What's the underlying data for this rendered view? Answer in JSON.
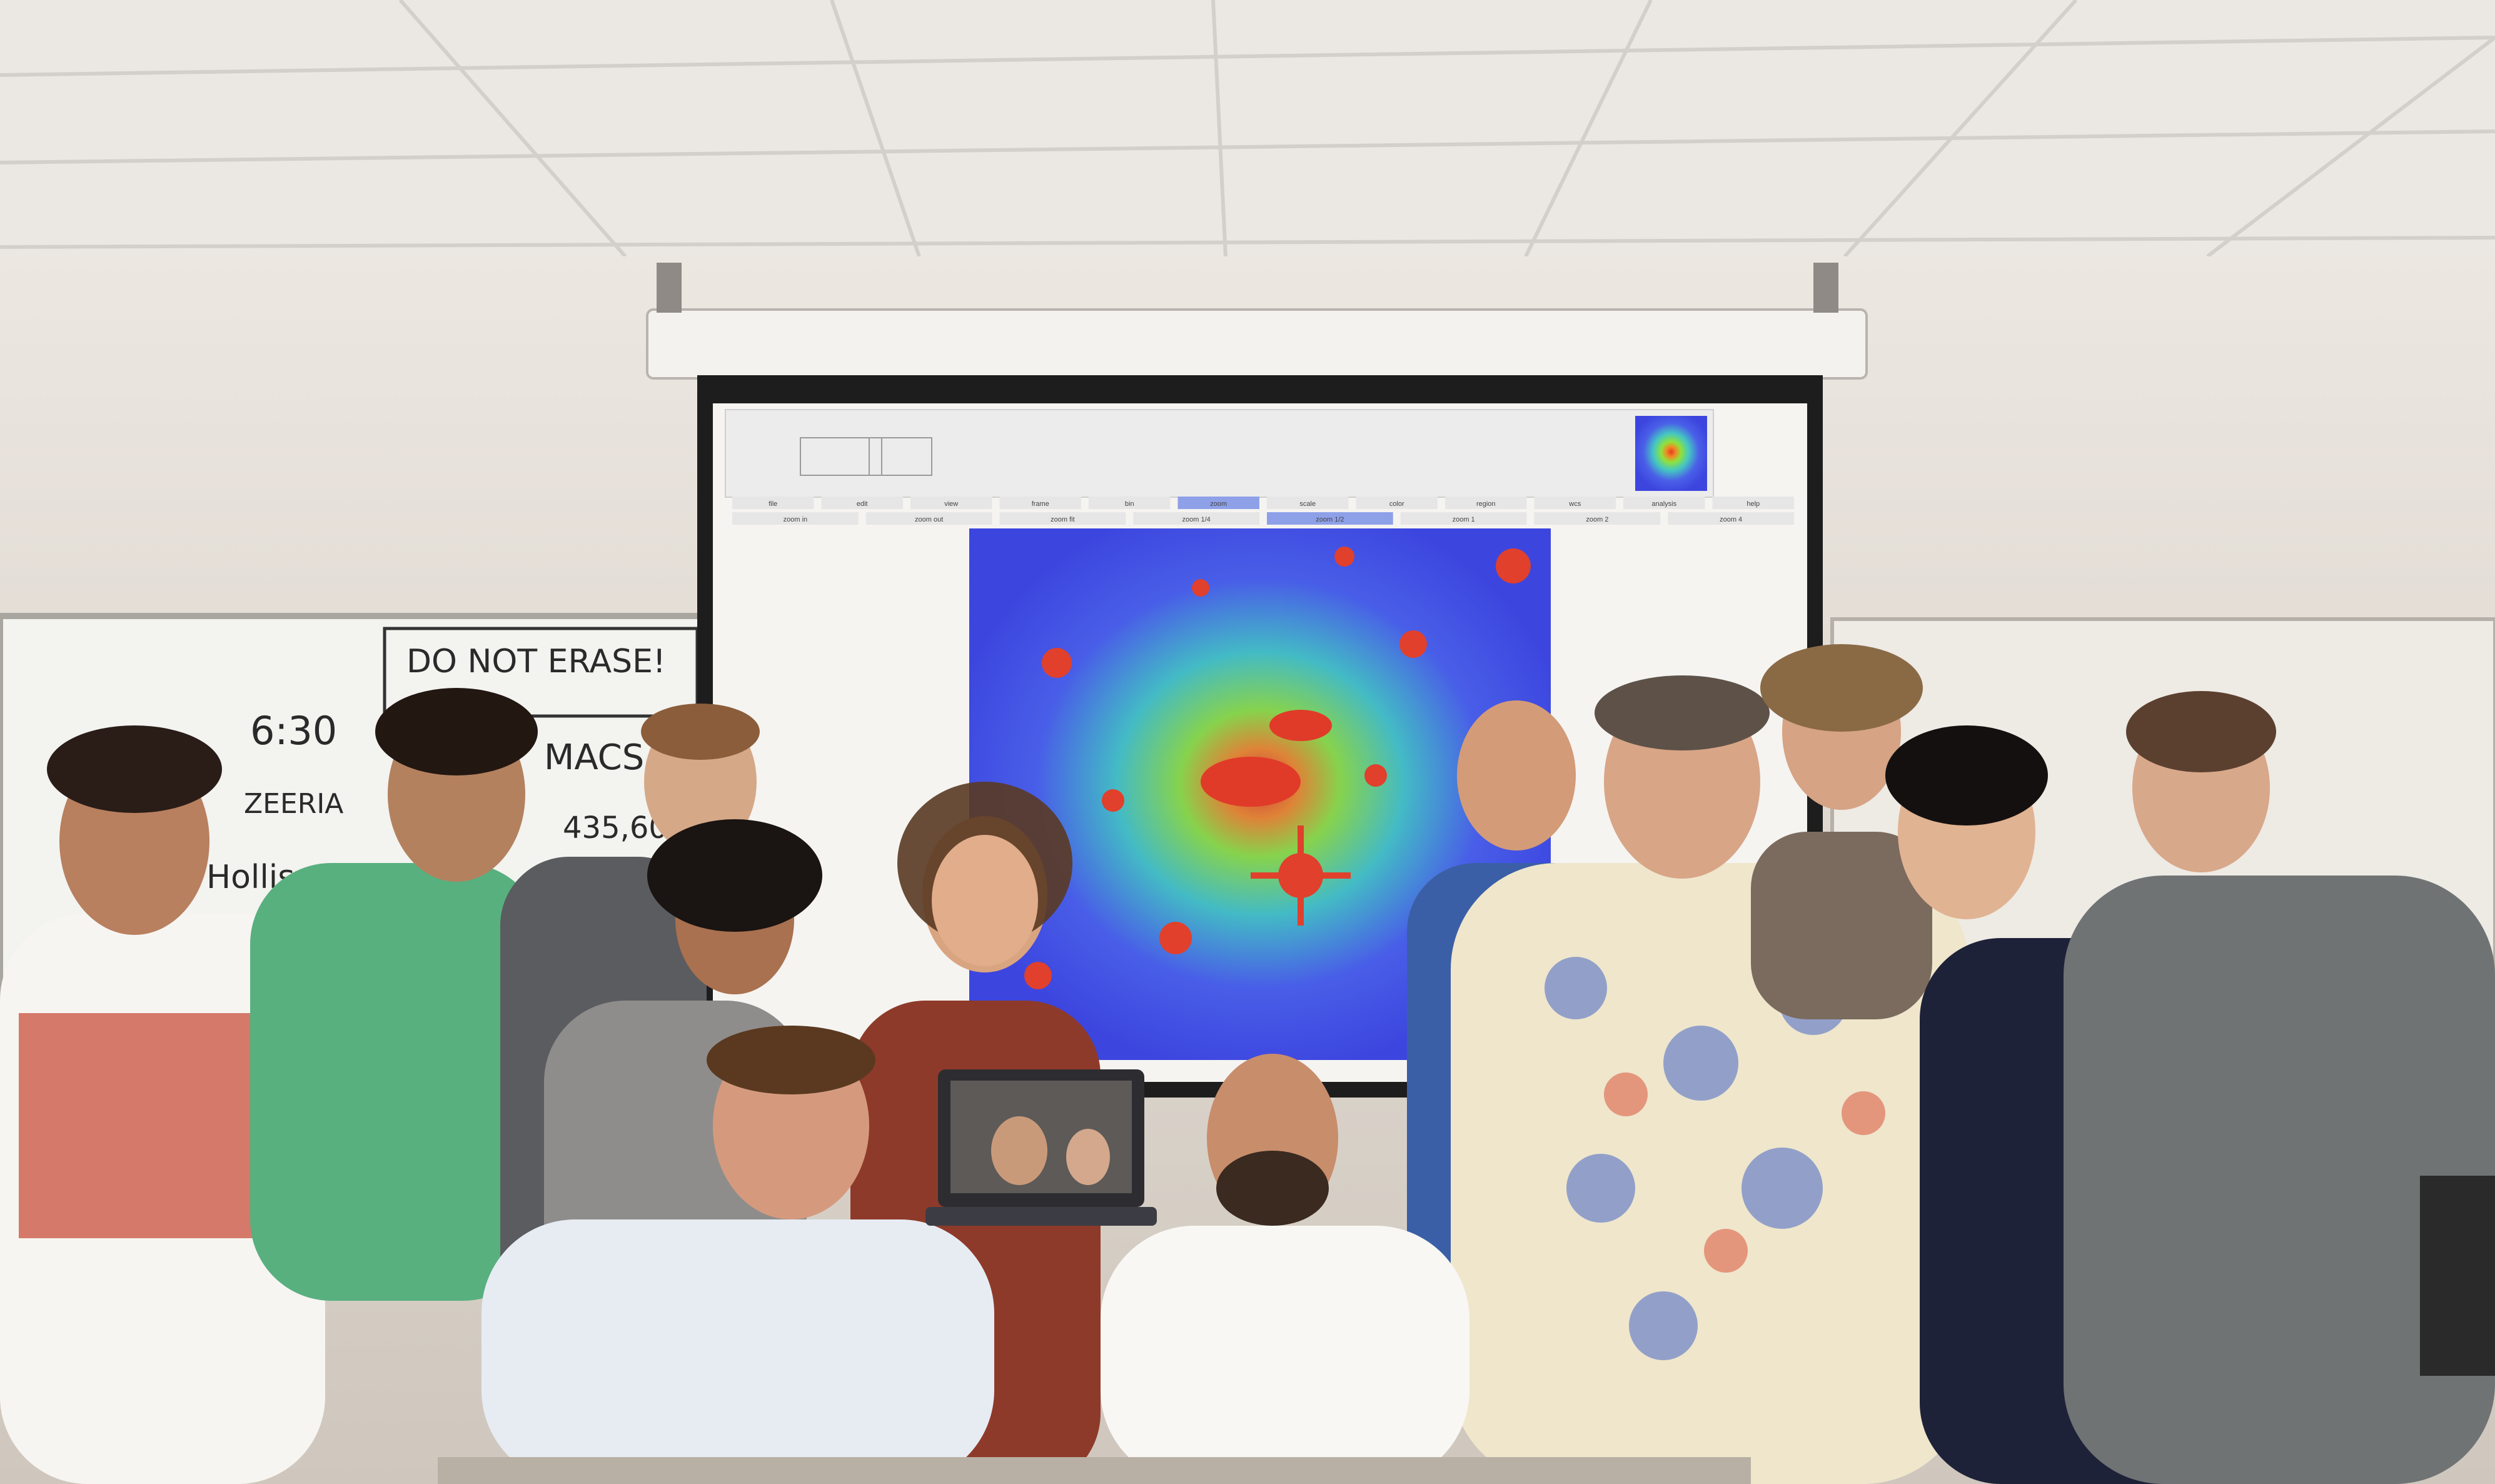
{
  "whiteboard": {
    "line1": "DO NOT ERASE!",
    "line2": "6:30",
    "line3": "ZEERIA",
    "line4": "MACS",
    "line5": "435,60",
    "line6": "Hollis"
  },
  "projection": {
    "menu_items": [
      "file",
      "edit",
      "view",
      "frame",
      "bin",
      "zoom",
      "scale",
      "color",
      "region",
      "wcs",
      "analysis",
      "help"
    ],
    "zoom_buttons": [
      "zoom in",
      "zoom out",
      "zoom fit",
      "zoom 1/4",
      "zoom 1/2",
      "zoom 1",
      "zoom 2",
      "zoom 4"
    ],
    "active_menu": "zoom",
    "active_zoom": "zoom 1/2"
  },
  "colors": {
    "image_bg": "#3b49e6",
    "image_mid": "#6ee04a",
    "image_hot": "#e23a2a",
    "ceiling": "#e9e6e2",
    "wall": "#e3ddd5"
  }
}
